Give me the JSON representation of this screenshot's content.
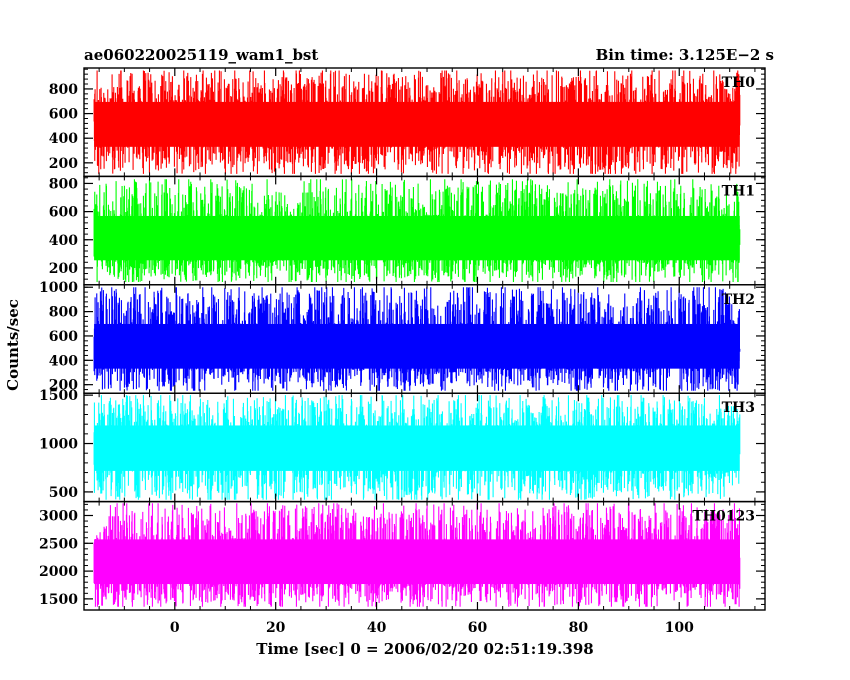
{
  "header": {
    "title": "ae060220025119_wam1_bst",
    "bin_time": "Bin time: 3.125E−2 s"
  },
  "chart_data": {
    "type": "line",
    "xlabel": "Time [sec] 0 = 2006/02/20 02:51:19.398",
    "ylabel": "Counts/sec",
    "xlim": [
      -18,
      117
    ],
    "x_range_of_data": [
      -16,
      112
    ],
    "x_ticks": [
      "0",
      "20",
      "40",
      "60",
      "80",
      "100"
    ],
    "x_tick_values": [
      0,
      20,
      40,
      60,
      80,
      100
    ],
    "panels": [
      {
        "name": "TH0",
        "color": "#ff0000",
        "ylim": [
          90,
          970
        ],
        "y_ticks": [
          200,
          400,
          600,
          800
        ],
        "center": 510,
        "low": 110,
        "high": 950
      },
      {
        "name": "TH1",
        "color": "#00ff00",
        "ylim": [
          80,
          850
        ],
        "y_ticks": [
          200,
          400,
          600,
          800
        ],
        "center": 380,
        "low": 100,
        "high": 830
      },
      {
        "name": "TH2",
        "color": "#0000ff",
        "ylim": [
          130,
          1020
        ],
        "y_ticks": [
          200,
          400,
          600,
          800,
          1000
        ],
        "center": 480,
        "low": 150,
        "high": 1000
      },
      {
        "name": "TH3",
        "color": "#00ffff",
        "ylim": [
          400,
          1520
        ],
        "y_ticks": [
          500,
          1000,
          1500
        ],
        "center": 960,
        "low": 420,
        "high": 1500
      },
      {
        "name": "TH0123",
        "color": "#ff00ff",
        "ylim": [
          1300,
          3250
        ],
        "y_ticks": [
          1500,
          2000,
          2500,
          3000
        ],
        "center": 2100,
        "low": 1360,
        "high": 3220
      }
    ]
  }
}
